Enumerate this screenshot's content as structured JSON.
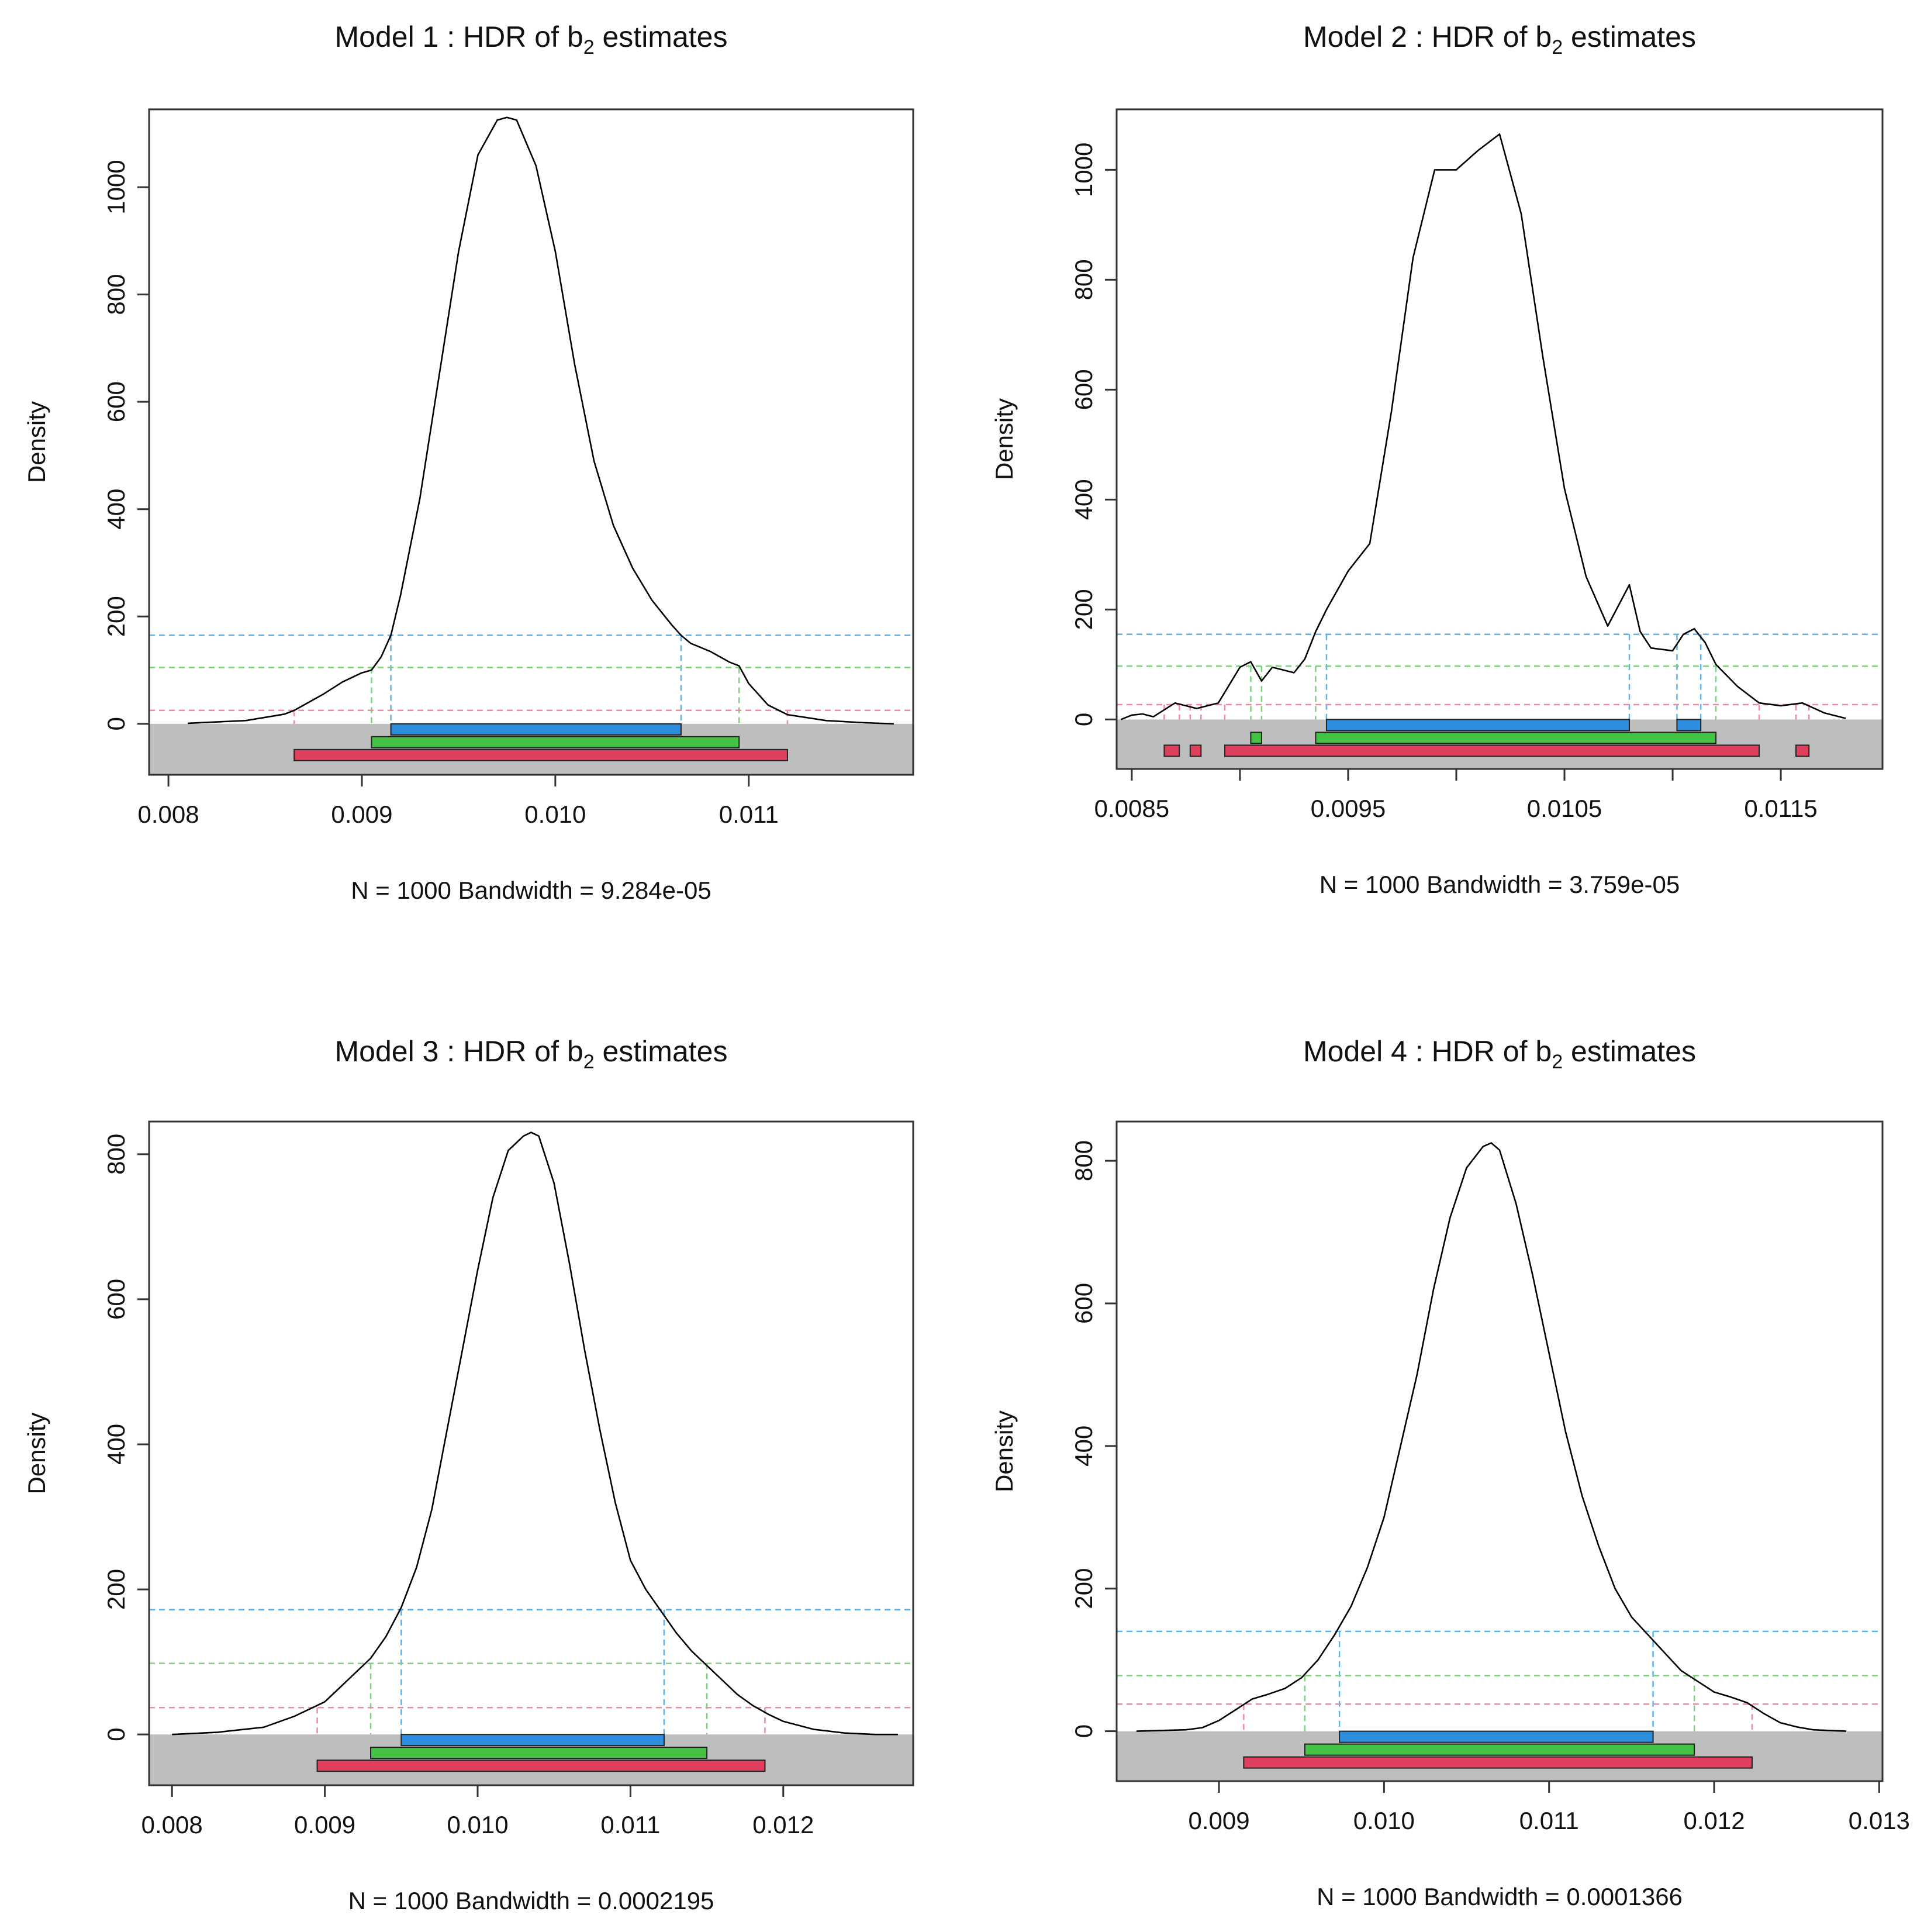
{
  "colors": {
    "curve": "#000000",
    "box": "#333333",
    "band": "#bebebe",
    "hdr50": "#2d8ee0",
    "hdr95": "#44c244",
    "hdr99": "#e0405e",
    "hdr50_line": "#5ab4ee",
    "hdr95_line": "#7ed27e",
    "hdr99_line": "#ee8aa0"
  },
  "chart_data": [
    {
      "type": "line",
      "title": {
        "prefix": "Model 1 :  HDR of b",
        "subscript": "2",
        "suffix": " estimates"
      },
      "ylabel": "Density",
      "xlabel": "N = 1000   Bandwidth = 9.284e-05",
      "xlim": [
        0.0079,
        0.01185
      ],
      "ylim": [
        -95,
        1145
      ],
      "xticks": [
        0.008,
        0.009,
        0.01,
        0.011
      ],
      "xtick_labels": [
        "0.008",
        "0.009",
        "0.010",
        "0.011"
      ],
      "yticks": [
        0,
        200,
        400,
        600,
        800,
        1000
      ],
      "ytick_labels": [
        "0",
        "200",
        "400",
        "600",
        "800",
        "1000"
      ],
      "density": {
        "x": [
          0.0081,
          0.0084,
          0.0086,
          0.00865,
          0.0088,
          0.0089,
          0.009,
          0.00905,
          0.0091,
          0.00915,
          0.0092,
          0.0093,
          0.0094,
          0.0095,
          0.0096,
          0.0097,
          0.00975,
          0.0098,
          0.0099,
          0.01,
          0.0101,
          0.0102,
          0.0103,
          0.0104,
          0.0105,
          0.0106,
          0.01065,
          0.0107,
          0.0108,
          0.0109,
          0.01095,
          0.011,
          0.0111,
          0.0112,
          0.0114,
          0.0116,
          0.01175
        ],
        "y": [
          1,
          6,
          18,
          25,
          55,
          78,
          95,
          100,
          125,
          165,
          240,
          420,
          650,
          880,
          1060,
          1125,
          1130,
          1125,
          1040,
          880,
          670,
          490,
          370,
          290,
          230,
          185,
          165,
          150,
          135,
          115,
          108,
          75,
          35,
          17,
          6,
          2,
          0
        ]
      },
      "hdr": [
        {
          "level": "50%",
          "threshold": 165,
          "intervals": [
            [
              0.00915,
              0.01065
            ]
          ]
        },
        {
          "level": "95%",
          "threshold": 105,
          "intervals": [
            [
              0.00905,
              0.01095
            ]
          ]
        },
        {
          "level": "99%",
          "threshold": 25,
          "intervals": [
            [
              0.00865,
              0.0112
            ]
          ]
        }
      ]
    },
    {
      "type": "line",
      "title": {
        "prefix": "Model 2 :  HDR of b",
        "subscript": "2",
        "suffix": " estimates"
      },
      "ylabel": "Density",
      "xlabel": "N = 1000   Bandwidth = 3.759e-05",
      "xlim": [
        0.00843,
        0.01197
      ],
      "ylim": [
        -90,
        1110
      ],
      "xticks": [
        0.0085,
        0.009,
        0.0095,
        0.01,
        0.0105,
        0.011,
        0.0115
      ],
      "xtick_labels": [
        "0.0085",
        "",
        "0.0095",
        "",
        "0.0105",
        "",
        "0.0115"
      ],
      "yticks": [
        0,
        200,
        400,
        600,
        800,
        1000
      ],
      "ytick_labels": [
        "0",
        "200",
        "400",
        "600",
        "800",
        "1000"
      ],
      "density": {
        "x": [
          0.00845,
          0.0085,
          0.00855,
          0.0086,
          0.0087,
          0.0088,
          0.0089,
          0.009,
          0.00905,
          0.0091,
          0.00915,
          0.0092,
          0.00925,
          0.0093,
          0.00935,
          0.0094,
          0.0095,
          0.0096,
          0.0097,
          0.0098,
          0.0099,
          0.01,
          0.0101,
          0.0102,
          0.0103,
          0.0104,
          0.0105,
          0.0106,
          0.0107,
          0.0108,
          0.01085,
          0.0109,
          0.011,
          0.01105,
          0.0111,
          0.01115,
          0.0112,
          0.0113,
          0.0114,
          0.0115,
          0.0116,
          0.0117,
          0.0118
        ],
        "y": [
          0,
          8,
          10,
          5,
          30,
          20,
          30,
          95,
          105,
          70,
          95,
          90,
          85,
          110,
          160,
          200,
          270,
          320,
          560,
          840,
          1000,
          1000,
          1035,
          1065,
          920,
          660,
          420,
          260,
          170,
          245,
          160,
          130,
          125,
          155,
          165,
          140,
          100,
          60,
          30,
          25,
          30,
          12,
          2
        ]
      },
      "hdr": [
        {
          "level": "50%",
          "threshold": 155,
          "intervals": [
            [
              0.0094,
              0.0108
            ],
            [
              0.01102,
              0.01113
            ]
          ]
        },
        {
          "level": "95%",
          "threshold": 97,
          "intervals": [
            [
              0.00905,
              0.0091
            ],
            [
              0.00935,
              0.0112
            ]
          ]
        },
        {
          "level": "99%",
          "threshold": 27,
          "intervals": [
            [
              0.00865,
              0.00872
            ],
            [
              0.00877,
              0.00882
            ],
            [
              0.00893,
              0.0114
            ],
            [
              0.01157,
              0.01163
            ]
          ]
        }
      ]
    },
    {
      "type": "line",
      "title": {
        "prefix": "Model 3 :  HDR of b",
        "subscript": "2",
        "suffix": " estimates"
      },
      "ylabel": "Density",
      "xlabel": "N = 1000   Bandwidth = 0.0002195",
      "xlim": [
        0.00785,
        0.01285
      ],
      "ylim": [
        -70,
        845
      ],
      "xticks": [
        0.008,
        0.009,
        0.01,
        0.011,
        0.012
      ],
      "xtick_labels": [
        "0.008",
        "0.009",
        "0.010",
        "0.011",
        "0.012"
      ],
      "yticks": [
        0,
        200,
        400,
        600,
        800
      ],
      "ytick_labels": [
        "0",
        "200",
        "400",
        "600",
        "800"
      ],
      "density": {
        "x": [
          0.008,
          0.0083,
          0.0086,
          0.0088,
          0.0089,
          0.009,
          0.0091,
          0.0092,
          0.0093,
          0.0094,
          0.0095,
          0.0096,
          0.0097,
          0.0098,
          0.0099,
          0.01,
          0.0101,
          0.0102,
          0.0103,
          0.01035,
          0.0104,
          0.0105,
          0.0106,
          0.0107,
          0.0108,
          0.0109,
          0.011,
          0.0111,
          0.0112,
          0.0113,
          0.0114,
          0.0115,
          0.0116,
          0.0117,
          0.0118,
          0.0119,
          0.012,
          0.0122,
          0.0124,
          0.0126,
          0.01275
        ],
        "y": [
          0,
          3,
          10,
          25,
          35,
          45,
          65,
          85,
          105,
          135,
          175,
          230,
          310,
          420,
          530,
          640,
          740,
          805,
          825,
          830,
          825,
          760,
          650,
          530,
          420,
          320,
          240,
          200,
          170,
          140,
          115,
          95,
          75,
          55,
          40,
          28,
          18,
          7,
          2,
          0,
          0
        ]
      },
      "hdr": [
        {
          "level": "50%",
          "threshold": 172,
          "intervals": [
            [
              0.0095,
              0.01122
            ]
          ]
        },
        {
          "level": "95%",
          "threshold": 98,
          "intervals": [
            [
              0.0093,
              0.0115
            ]
          ]
        },
        {
          "level": "99%",
          "threshold": 37,
          "intervals": [
            [
              0.00895,
              0.01188
            ]
          ]
        }
      ]
    },
    {
      "type": "line",
      "title": {
        "prefix": "Model 4 :  HDR of b",
        "subscript": "2",
        "suffix": " estimates"
      },
      "ylabel": "Density",
      "xlabel": "N = 1000   Bandwidth = 0.0001366",
      "xlim": [
        0.00838,
        0.01302
      ],
      "ylim": [
        -70,
        855
      ],
      "xticks": [
        0.009,
        0.01,
        0.011,
        0.012,
        0.013
      ],
      "xtick_labels": [
        "0.009",
        "0.010",
        "0.011",
        "0.012",
        "0.013"
      ],
      "yticks": [
        0,
        200,
        400,
        600,
        800
      ],
      "ytick_labels": [
        "0",
        "200",
        "400",
        "600",
        "800"
      ],
      "density": {
        "x": [
          0.0085,
          0.0088,
          0.0089,
          0.009,
          0.0091,
          0.0092,
          0.0093,
          0.0094,
          0.0095,
          0.0096,
          0.0097,
          0.0098,
          0.0099,
          0.01,
          0.0101,
          0.0102,
          0.0103,
          0.0104,
          0.0105,
          0.0106,
          0.01065,
          0.0107,
          0.0108,
          0.0109,
          0.011,
          0.0111,
          0.0112,
          0.0113,
          0.0114,
          0.0115,
          0.0116,
          0.0117,
          0.0118,
          0.0119,
          0.012,
          0.0121,
          0.0122,
          0.0123,
          0.0124,
          0.0125,
          0.0126,
          0.0128
        ],
        "y": [
          0,
          2,
          5,
          15,
          30,
          45,
          52,
          60,
          75,
          100,
          135,
          175,
          230,
          300,
          400,
          500,
          620,
          720,
          790,
          820,
          825,
          815,
          740,
          640,
          530,
          420,
          330,
          260,
          200,
          160,
          135,
          110,
          85,
          70,
          55,
          48,
          40,
          25,
          12,
          6,
          2,
          0
        ]
      },
      "hdr": [
        {
          "level": "50%",
          "threshold": 140,
          "intervals": [
            [
              0.00973,
              0.01163
            ]
          ]
        },
        {
          "level": "95%",
          "threshold": 78,
          "intervals": [
            [
              0.00952,
              0.01188
            ]
          ]
        },
        {
          "level": "99%",
          "threshold": 38,
          "intervals": [
            [
              0.00915,
              0.01223
            ]
          ]
        }
      ]
    }
  ]
}
